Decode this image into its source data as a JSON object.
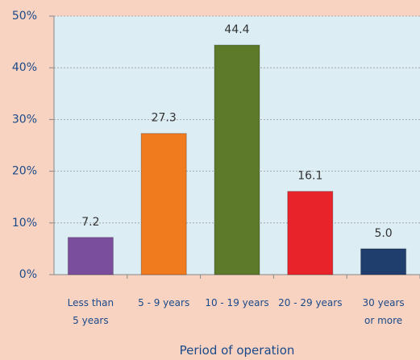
{
  "chart_data": {
    "type": "bar",
    "xlabel": "Period of operation",
    "categories": [
      "Less than\n5 years",
      "5 - 9 years",
      "10 - 19 years",
      "20 - 29 years",
      "30 years\nor more"
    ],
    "values": [
      7.2,
      27.3,
      44.4,
      16.1,
      5.0
    ],
    "value_labels": [
      "7.2",
      "27.3",
      "44.4",
      "16.1",
      "5.0"
    ],
    "colors": [
      "#7a4e9c",
      "#f07a1e",
      "#5d7a2b",
      "#e8232a",
      "#1f3d6d"
    ],
    "ylim": [
      0,
      50
    ],
    "yticks": [
      {
        "value": 0,
        "label": "0%"
      },
      {
        "value": 10,
        "label": "10%"
      },
      {
        "value": 20,
        "label": "20%"
      },
      {
        "value": 30,
        "label": "30%"
      },
      {
        "value": 40,
        "label": "40%"
      },
      {
        "value": 50,
        "label": "50%"
      }
    ],
    "grid": true
  }
}
